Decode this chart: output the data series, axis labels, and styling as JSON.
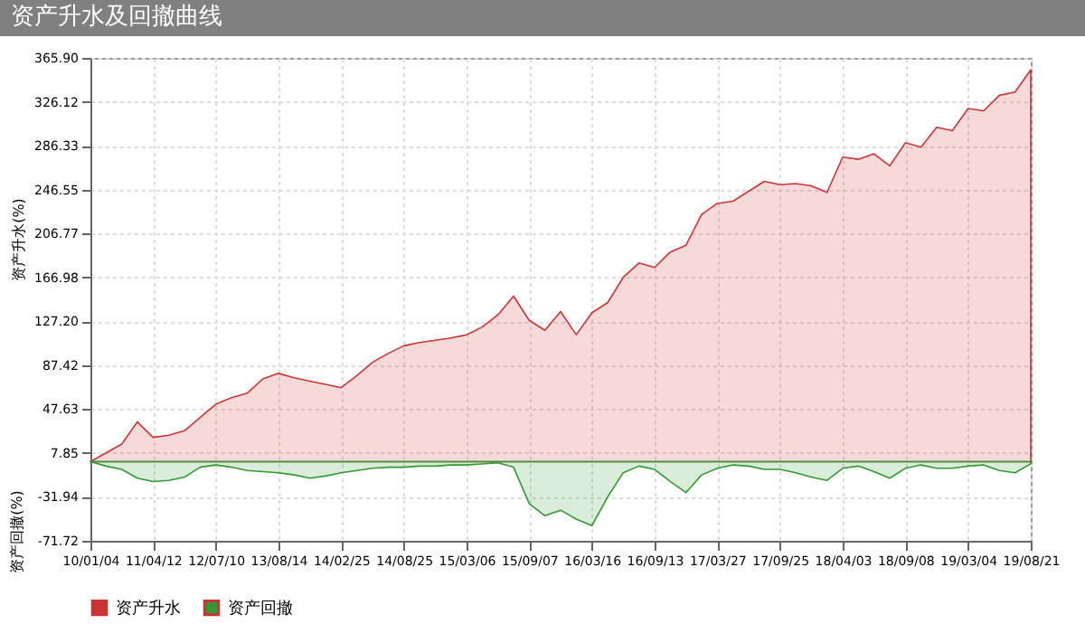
{
  "chart_data": {
    "type": "area",
    "title": "资产升水及回撤曲线",
    "ylabel": "资产升水(%)",
    "annotations": [
      "资产回撤(%)"
    ],
    "categories": [
      "10/01/04",
      null,
      null,
      null,
      "11/04/12",
      null,
      null,
      null,
      "12/07/10",
      null,
      null,
      null,
      "13/08/14",
      null,
      null,
      null,
      "14/02/25",
      null,
      null,
      null,
      "14/08/25",
      null,
      null,
      null,
      "15/03/06",
      null,
      null,
      null,
      "15/09/07",
      null,
      null,
      null,
      "16/03/16",
      null,
      null,
      null,
      "16/09/13",
      null,
      null,
      null,
      "17/03/27",
      null,
      null,
      null,
      "17/09/25",
      null,
      null,
      null,
      "18/04/03",
      null,
      null,
      null,
      "18/09/08",
      null,
      null,
      null,
      "19/03/04",
      null,
      null,
      null,
      "19/08/21"
    ],
    "ylim": [
      -71.72,
      365.9
    ],
    "yticks": [
      -71.72,
      -31.94,
      7.85,
      47.63,
      87.42,
      {
        "value": 127.2,
        "label": "127.20"
      },
      166.98,
      206.77,
      246.55,
      286.33,
      326.12,
      {
        "value": 365.9,
        "label": "365.90"
      }
    ],
    "grid": true,
    "legend": "bottom",
    "series": [
      {
        "name": "资产升水",
        "color": "#cc3333",
        "values": [
          0,
          8,
          16,
          36,
          22,
          24,
          28,
          40,
          52,
          58,
          62,
          75,
          80,
          76,
          73,
          70,
          67,
          78,
          90,
          98,
          105,
          108,
          110,
          112,
          115,
          122,
          133,
          150,
          128,
          119,
          136,
          115,
          135,
          144,
          167,
          180,
          176,
          190,
          196,
          224,
          234,
          236,
          245,
          254,
          251,
          252,
          250,
          244,
          276,
          274,
          279,
          268,
          289,
          285,
          303,
          300,
          320,
          318,
          332,
          335,
          355
        ]
      },
      {
        "name": "资产回撤",
        "color": "#339933",
        "values": [
          0,
          -4,
          -7,
          -15,
          -18,
          -17,
          -14,
          -5,
          -3,
          -5,
          -8,
          -9,
          -10,
          -12,
          -15,
          -13,
          -10,
          -8,
          -6,
          -5,
          -5,
          -4,
          -4,
          -3,
          -3,
          -2,
          -1,
          -5,
          -38,
          -49,
          -44,
          -52,
          -58,
          -32,
          -10,
          -4,
          -7,
          -18,
          -28,
          -12,
          -6,
          -3,
          -4,
          -7,
          -7,
          -10,
          -14,
          -17,
          -6,
          -4,
          -9,
          -15,
          -6,
          -3,
          -6,
          -6,
          -4,
          -3,
          -8,
          -10,
          -2
        ]
      }
    ]
  }
}
